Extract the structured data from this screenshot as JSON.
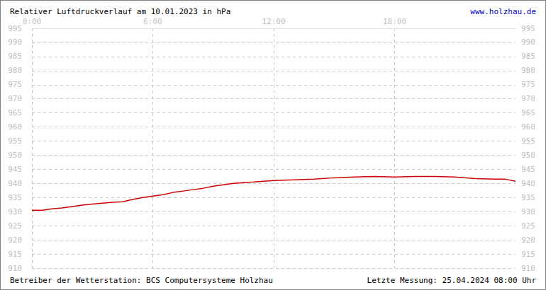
{
  "chart_data": {
    "type": "line",
    "title": "Relativer Luftdruckverlauf am 10.01.2023 in hPa",
    "annotations": [
      "www.holzhau.de",
      "Betreiber der Wetterstation: BCS Computersysteme Holzhau",
      "Letzte Messung: 25.04.2024 08:00 Uhr"
    ],
    "x": [
      0,
      0.5,
      1,
      1.5,
      2,
      2.5,
      3,
      3.5,
      4,
      4.5,
      5,
      5.5,
      6,
      6.5,
      7,
      7.5,
      8,
      8.5,
      9,
      9.5,
      10,
      10.5,
      11,
      11.5,
      12,
      13,
      14,
      15,
      16,
      17,
      18,
      19,
      20,
      21,
      22,
      23,
      23.5,
      24
    ],
    "series": [
      {
        "name": "Luftdruck",
        "color": "#cc0000",
        "line_style": "solid",
        "values": [
          930.5,
          930.5,
          931,
          931.3,
          931.8,
          932.3,
          932.7,
          933,
          933.3,
          933.5,
          934.3,
          935,
          935.5,
          936,
          936.8,
          937.3,
          937.8,
          938.3,
          939,
          939.5,
          940,
          940.3,
          940.5,
          940.8,
          941,
          941.3,
          941.5,
          942,
          942.3,
          942.5,
          942.3,
          942.5,
          942.5,
          942.3,
          941.7,
          941.5,
          941.5,
          940.8
        ]
      }
    ],
    "xlim": [
      0,
      24
    ],
    "xticks": [
      {
        "value": 0,
        "label": "0:00"
      },
      {
        "value": 6,
        "label": "6:00"
      },
      {
        "value": 12,
        "label": "12:00"
      },
      {
        "value": 18,
        "label": "18:00"
      }
    ],
    "ylim": [
      910,
      995
    ],
    "yticks": [
      910,
      915,
      920,
      925,
      930,
      935,
      940,
      945,
      950,
      955,
      960,
      965,
      970,
      975,
      980,
      985,
      990,
      995
    ],
    "grid": true
  }
}
